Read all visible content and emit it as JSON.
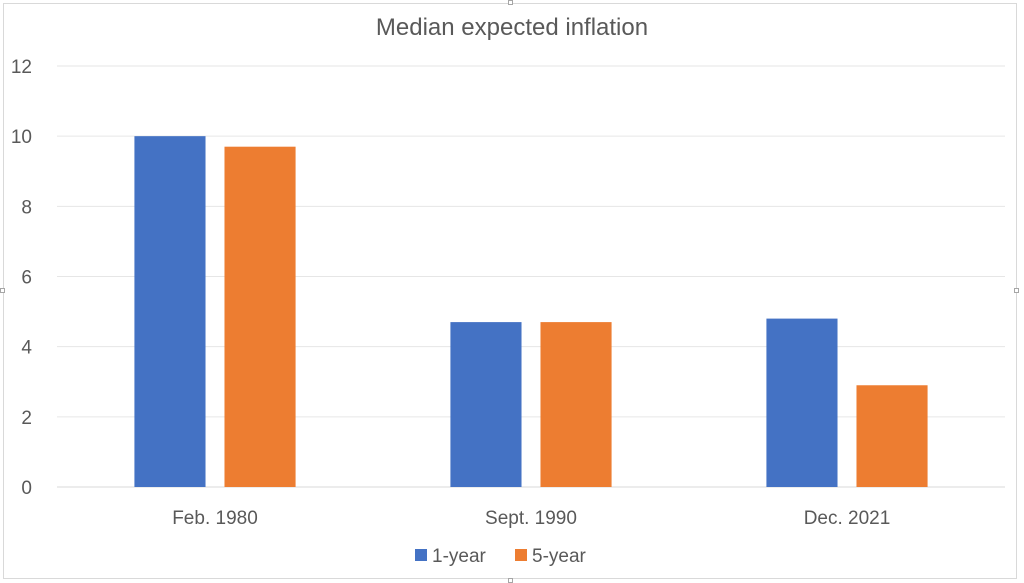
{
  "chart_data": {
    "type": "bar",
    "title": "Median expected inflation",
    "xlabel": "",
    "ylabel": "",
    "categories": [
      "Feb. 1980",
      "Sept. 1990",
      "Dec. 2021"
    ],
    "series": [
      {
        "name": "1-year",
        "color": "#4472C4",
        "values": [
          10.0,
          4.7,
          4.8
        ]
      },
      {
        "name": "5-year",
        "color": "#ED7D31",
        "values": [
          9.7,
          4.7,
          2.9
        ]
      }
    ],
    "ylim": [
      0,
      12
    ],
    "yticks": [
      "0",
      "2",
      "4",
      "6",
      "8",
      "10",
      "12"
    ],
    "grid": true,
    "legend": "bottom"
  }
}
